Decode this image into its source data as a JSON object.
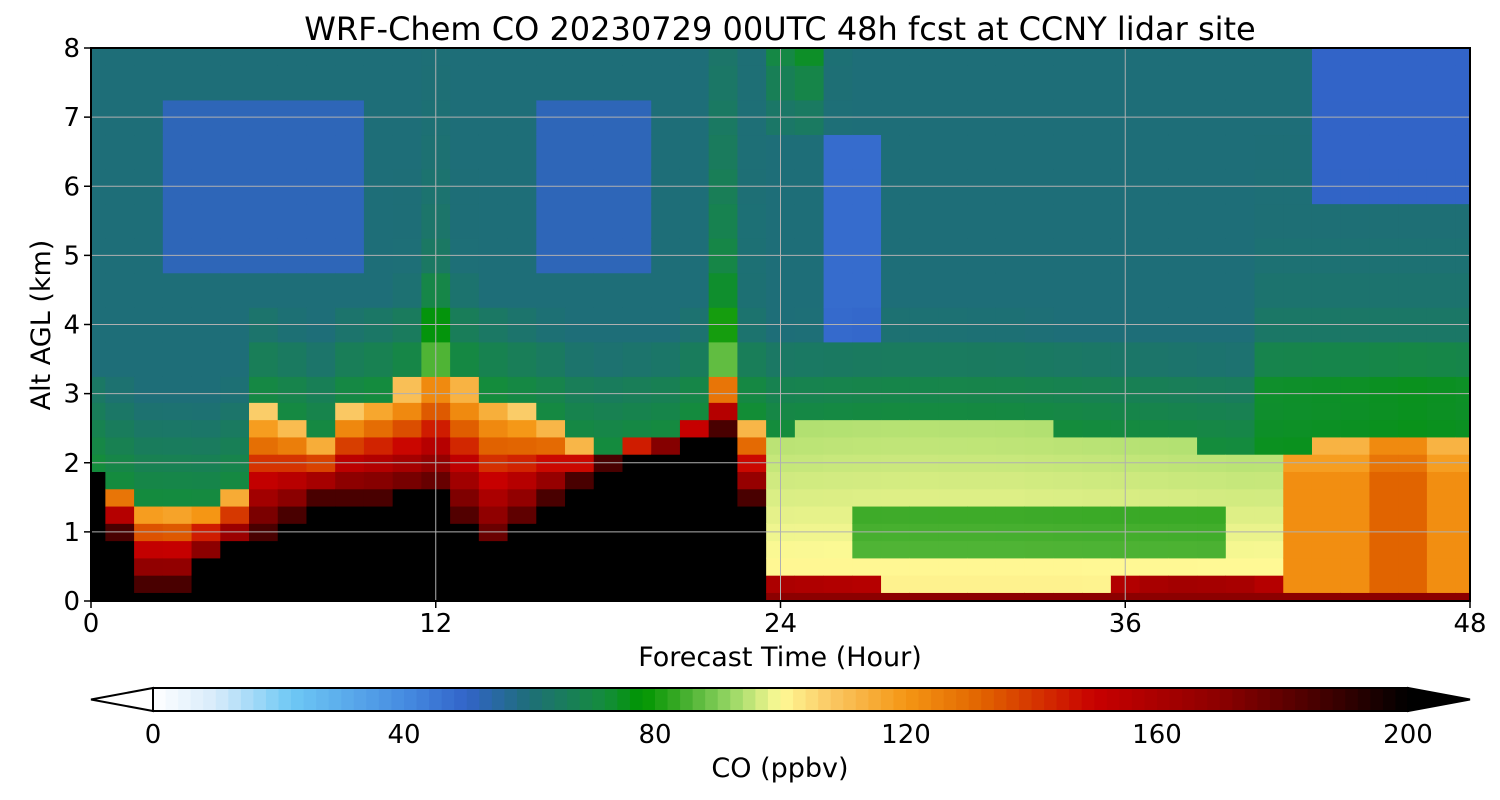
{
  "chart_data": {
    "type": "heatmap",
    "title": "WRF-Chem CO  20230729 00UTC 48h fcst at CCNY lidar site",
    "xlabel": "Forecast Time (Hour)",
    "ylabel": "Alt AGL (km)",
    "xlim": [
      0,
      48
    ],
    "ylim": [
      0,
      8
    ],
    "x_ticks": [
      "0",
      "12",
      "24",
      "36",
      "48"
    ],
    "y_ticks": [
      "0",
      "1",
      "2",
      "3",
      "4",
      "5",
      "6",
      "7",
      "8"
    ],
    "grid": true,
    "x": [
      0,
      1,
      2,
      3,
      4,
      5,
      6,
      7,
      8,
      9,
      10,
      11,
      12,
      13,
      14,
      15,
      16,
      17,
      18,
      19,
      20,
      21,
      22,
      23,
      24,
      25,
      26,
      27,
      28,
      29,
      30,
      31,
      32,
      33,
      34,
      35,
      36,
      37,
      38,
      39,
      40,
      41,
      42,
      43,
      44,
      45,
      46,
      47,
      48
    ],
    "y": [
      0,
      0.25,
      0.5,
      0.75,
      1,
      1.25,
      1.5,
      1.75,
      2,
      2.25,
      2.5,
      2.75,
      3,
      3.5,
      4,
      4.5,
      5,
      5.5,
      6,
      6.5,
      7,
      7.5,
      8
    ],
    "colorbar": {
      "label": "CO  (ppbv)",
      "ticks": [
        "0",
        "40",
        "80",
        "120",
        "160",
        "200"
      ],
      "range": [
        0,
        200
      ],
      "extend": "both",
      "levels": 100
    }
  }
}
